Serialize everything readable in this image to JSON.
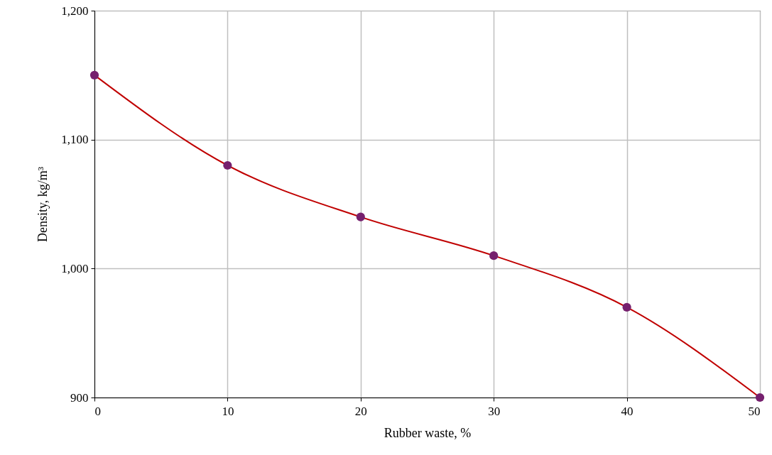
{
  "chart_data": {
    "type": "line",
    "xlabel": "Rubber waste, %",
    "ylabel": "Density, kg/m³",
    "x": [
      0,
      10,
      20,
      30,
      40,
      50
    ],
    "series": [
      {
        "color": "#c00000",
        "colors": [
          "#76206e",
          "#76206e",
          "#76206e",
          "#76206e",
          "#76206e",
          "#76206e"
        ],
        "values": [
          1150,
          1080,
          1040,
          1010,
          970,
          900
        ]
      }
    ],
    "xlim": [
      0,
      50
    ],
    "xticks": [
      0,
      10,
      20,
      30,
      40,
      50
    ],
    "ylim": [
      900,
      1200
    ],
    "yticks": [
      900,
      {
        "value": 1000,
        "label": "1,000"
      },
      {
        "value": 1100,
        "label": "1,100"
      },
      {
        "value": 1200,
        "label": "1,200"
      }
    ],
    "grid": true,
    "marker": "circle"
  }
}
